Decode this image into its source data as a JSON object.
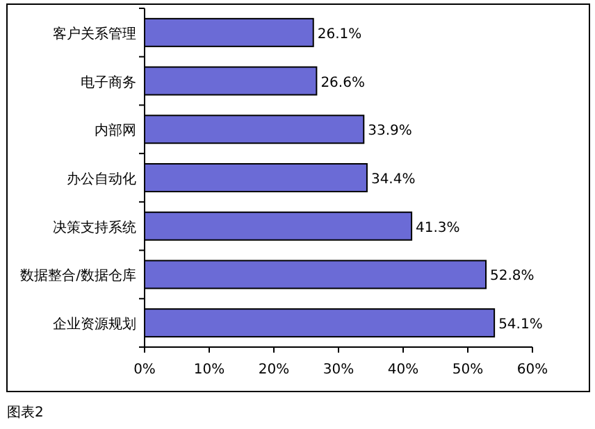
{
  "chart_data": {
    "type": "bar",
    "orientation": "horizontal",
    "categories": [
      "客户关系管理",
      "电子商务",
      "内部网",
      "办公自动化",
      "决策支持系统",
      "数据整合/数据仓库",
      "企业资源规划"
    ],
    "values": [
      26.1,
      26.6,
      33.9,
      34.4,
      41.3,
      52.8,
      54.1
    ],
    "value_labels": [
      "26.1%",
      "26.6%",
      "33.9%",
      "34.4%",
      "41.3%",
      "52.8%",
      "54.1%"
    ],
    "color": "#6b6bd6",
    "xlim": [
      0,
      60
    ],
    "xticks": [
      {
        "value": 0,
        "label": "0%"
      },
      {
        "value": 10,
        "label": "10%"
      },
      {
        "value": 20,
        "label": "20%"
      },
      {
        "value": 30,
        "label": "30%"
      },
      {
        "value": 40,
        "label": "40%"
      },
      {
        "value": 50,
        "label": "50%"
      },
      {
        "value": 60,
        "label": "60%"
      }
    ],
    "grid": false,
    "annotations": [
      "图表2"
    ]
  }
}
